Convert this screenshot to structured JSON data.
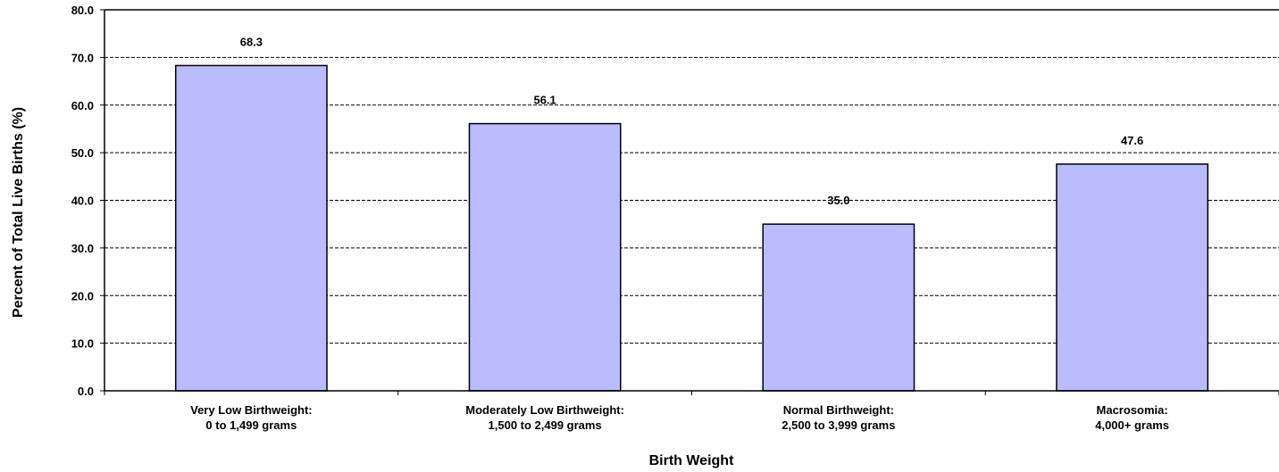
{
  "chart_data": {
    "type": "bar",
    "title": "",
    "xlabel": "Birth Weight",
    "ylabel": "Percent of Total Live Births (%)",
    "ylim": [
      0,
      80
    ],
    "yticks": [
      0,
      10,
      20,
      30,
      40,
      50,
      60,
      70,
      80
    ],
    "ytick_labels": [
      "0.0",
      "10.0",
      "20.0",
      "30.0",
      "40.0",
      "50.0",
      "60.0",
      "70.0",
      "80.0"
    ],
    "categories": [
      [
        "Very Low Birthweight:",
        "0 to 1,499 grams"
      ],
      [
        "Moderately Low Birthweight:",
        "1,500 to 2,499 grams"
      ],
      [
        "Normal Birthweight:",
        "2,500 to 3,999 grams"
      ],
      [
        "Macrosomia:",
        "4,000+ grams"
      ]
    ],
    "values": [
      68.3,
      56.1,
      35.0,
      47.6
    ],
    "value_labels": [
      "68.3",
      "56.1",
      "35.0",
      "47.6"
    ],
    "grid": true,
    "grid_style": "dashed",
    "bar_color": "#bbbbff",
    "bar_edge_color": "#000000",
    "legend": "none"
  }
}
